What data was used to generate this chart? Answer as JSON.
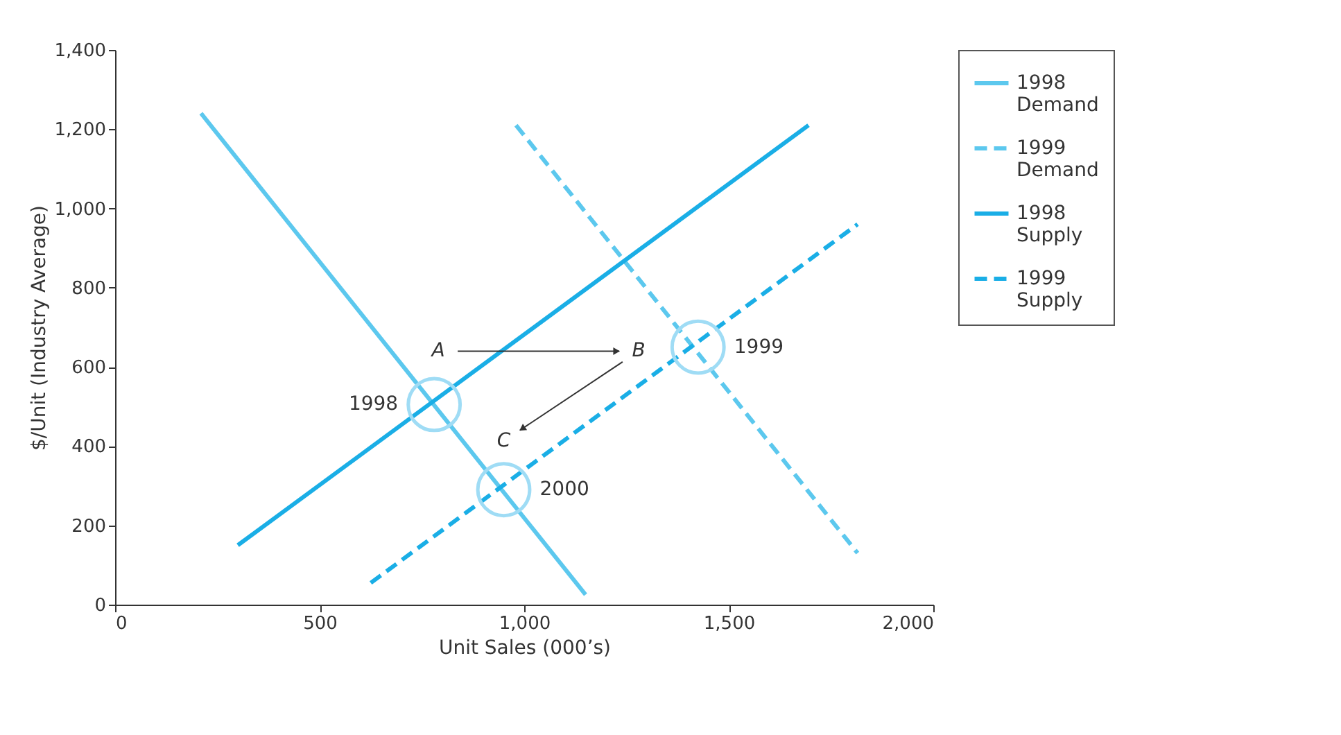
{
  "chart_data": {
    "type": "line",
    "xlabel": "Unit Sales (000’s)",
    "ylabel": "$/Unit (Industry Average)",
    "xlim": [
      0,
      2000
    ],
    "xticks": [
      0,
      500,
      {
        "value": 1000,
        "label": "1,000"
      },
      {
        "value": 1500,
        "label": "1,500"
      },
      {
        "value": 2000,
        "label": "2,000"
      }
    ],
    "ylim": [
      0,
      1400
    ],
    "yticks": [
      0,
      200,
      400,
      600,
      800,
      {
        "value": 1000,
        "label": "1,000"
      },
      {
        "value": 1200,
        "label": "1,200"
      },
      {
        "value": 1400,
        "label": "1,400"
      }
    ],
    "grid": false,
    "legend": "right",
    "series": [
      {
        "name": "1998 Demand",
        "color": "#5cc8ee",
        "line_style": "solid",
        "x": [
          210,
          1150
        ],
        "values": [
          1240,
          25
        ]
      },
      {
        "name": "1999 Demand",
        "color": "#5cc8ee",
        "line_style": "dashed",
        "x": [
          980,
          1815
        ],
        "values": [
          1210,
          130
        ]
      },
      {
        "name": "1998 Supply",
        "color": "#1aaee6",
        "line_style": "solid",
        "x": [
          300,
          1695
        ],
        "values": [
          150,
          1210
        ]
      },
      {
        "name": "1999 Supply",
        "color": "#1aaee6",
        "line_style": "dashed",
        "x": [
          625,
          1815
        ],
        "values": [
          55,
          960
        ]
      },
      {
        "type": "scatter",
        "marker": "circle",
        "color": "#9fdcf5",
        "x": [
          780,
          1425,
          950
        ],
        "values": [
          505,
          650,
          290
        ]
      }
    ],
    "annotations": [
      {
        "text": "1998",
        "x": 780,
        "y": 505
      },
      {
        "text": "1999",
        "x": 1425,
        "y": 650
      },
      {
        "text": "2000",
        "x": 950,
        "y": 290
      },
      "A",
      "B",
      "C"
    ]
  }
}
